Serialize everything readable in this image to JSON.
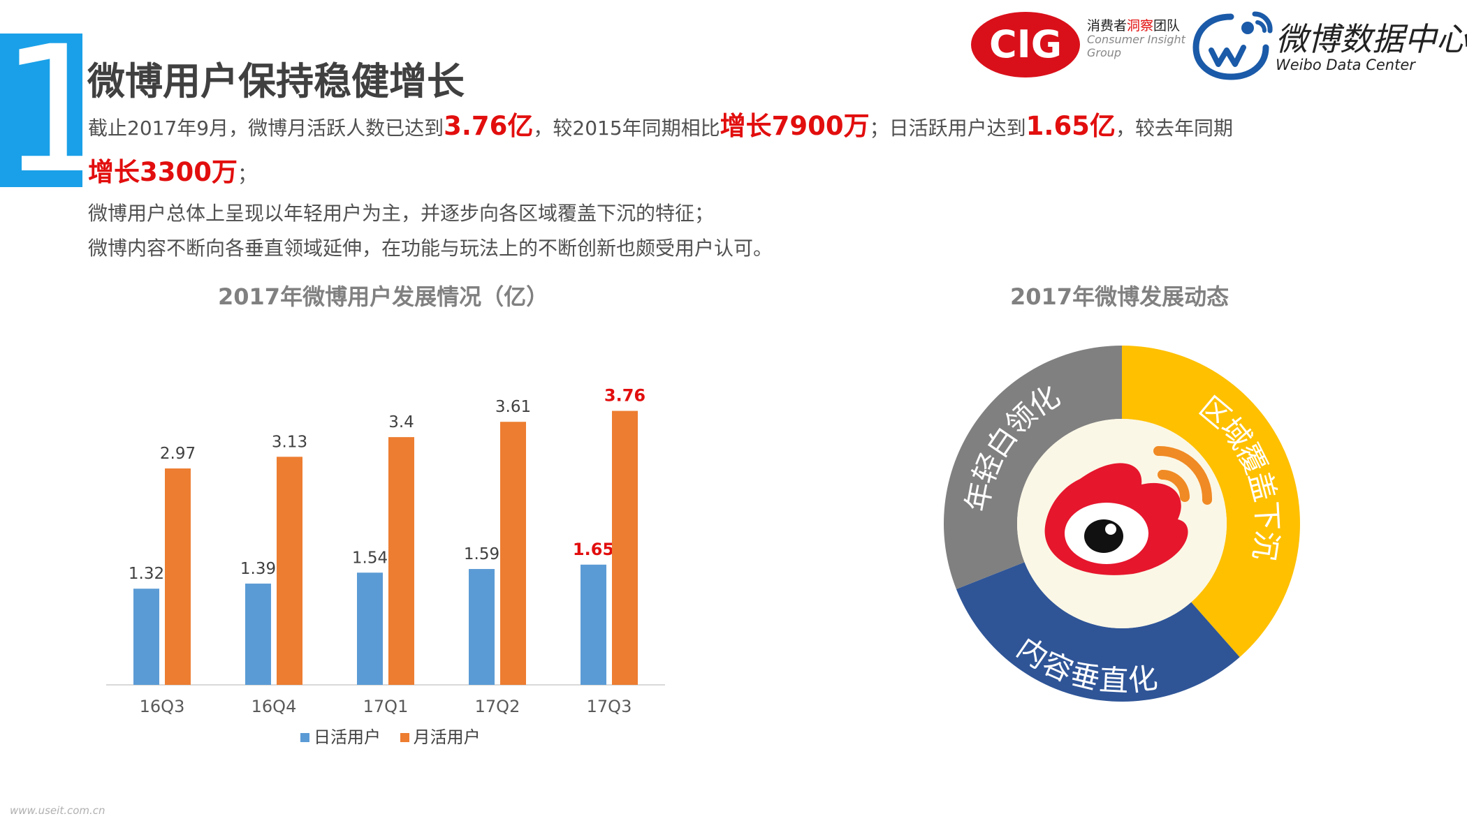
{
  "section_number": "1",
  "title": "微博用户保持稳健增长",
  "intro": {
    "p1_a": "截止2017年9月，微博月活跃人数已达到",
    "p1_h1": "3.76亿",
    "p1_b": "，较2015年同期相比",
    "p1_h2": "增长7900万",
    "p1_c": "；日活跃用户达到",
    "p1_h3": "1.65亿",
    "p1_d": "，较去年同期",
    "p2_h": "增长3300万",
    "p2_a": "；",
    "line3": "微博用户总体上呈现以年轻用户为主，并逐步向各区域覆盖下沉的特征；",
    "line4": "微博内容不断向各垂直领域延伸，在功能与玩法上的不断创新也颇受用户认可。"
  },
  "logos": {
    "cig_mark": "CIG",
    "cig_cn_a": "消费者",
    "cig_cn_b": "洞察",
    "cig_cn_c": "团队",
    "cig_en1": "Consumer Insight",
    "cig_en2": "Group",
    "weibo_cn": "微博数据中心",
    "weibo_en": "Weibo Data Center"
  },
  "watermark": "www.useit.com.cn",
  "colors": {
    "accent_blue": "#1aa0e8",
    "highlight_red": "#e20e0e",
    "dau_blue": "#5b9bd5",
    "mau_orange": "#ed7d31",
    "ring_gray": "#808080",
    "ring_yellow": "#ffc000",
    "ring_navy": "#2f5597",
    "ring_center": "#fbf7e6"
  },
  "chart_data": [
    {
      "type": "bar",
      "title": "2017年微博用户发展情况（亿）",
      "categories": [
        "16Q3",
        "16Q4",
        "17Q1",
        "17Q2",
        "17Q3"
      ],
      "series": [
        {
          "name": "日活用户",
          "values": [
            1.32,
            1.39,
            1.54,
            1.59,
            1.65
          ],
          "color": "#5b9bd5"
        },
        {
          "name": "月活用户",
          "values": [
            2.97,
            3.13,
            3.4,
            3.61,
            3.76
          ],
          "color": "#ed7d31"
        }
      ],
      "value_labels": {
        "日活用户": [
          "1.32",
          "1.39",
          "1.54",
          "1.59",
          "1.65"
        ],
        "月活用户": [
          "2.97",
          "3.13",
          "3.4",
          "3.61",
          "3.76"
        ]
      },
      "highlight_last": true,
      "ylim": [
        0,
        4
      ],
      "grid": false,
      "legend": "bottom"
    },
    {
      "type": "pie",
      "title": "2017年微博发展动态",
      "style": "donut",
      "segments": [
        {
          "label": "区域覆盖下沉",
          "color": "#ffc000",
          "share": 0.385
        },
        {
          "label": "内容垂直化",
          "color": "#2f5597",
          "share": 0.305
        },
        {
          "label": "年轻白领化",
          "color": "#808080",
          "share": 0.31
        }
      ],
      "center_icon": "weibo-logo-icon"
    }
  ]
}
